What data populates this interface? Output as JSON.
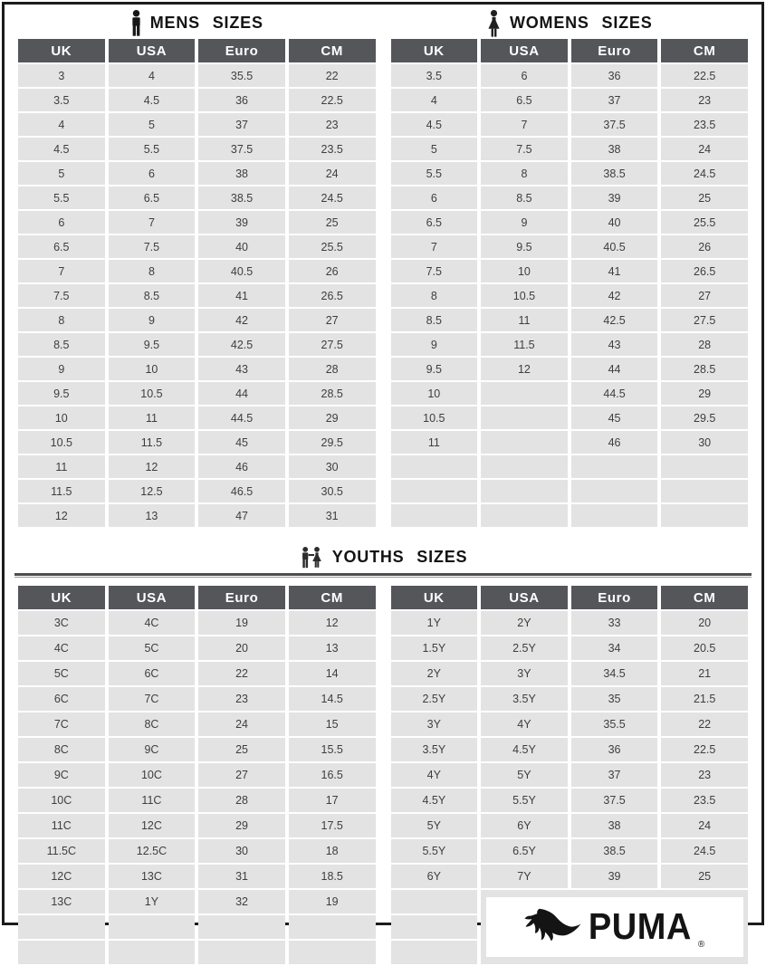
{
  "sections": {
    "mens": {
      "title": "MENS SIZES"
    },
    "womens": {
      "title": "WOMENS SIZES"
    },
    "youths": {
      "title": "YOUTHS SIZES"
    }
  },
  "tables": {
    "mens": {
      "headers": [
        "UK",
        "USA",
        "Euro",
        "CM"
      ],
      "rows": [
        [
          "3",
          "4",
          "35.5",
          "22"
        ],
        [
          "3.5",
          "4.5",
          "36",
          "22.5"
        ],
        [
          "4",
          "5",
          "37",
          "23"
        ],
        [
          "4.5",
          "5.5",
          "37.5",
          "23.5"
        ],
        [
          "5",
          "6",
          "38",
          "24"
        ],
        [
          "5.5",
          "6.5",
          "38.5",
          "24.5"
        ],
        [
          "6",
          "7",
          "39",
          "25"
        ],
        [
          "6.5",
          "7.5",
          "40",
          "25.5"
        ],
        [
          "7",
          "8",
          "40.5",
          "26"
        ],
        [
          "7.5",
          "8.5",
          "41",
          "26.5"
        ],
        [
          "8",
          "9",
          "42",
          "27"
        ],
        [
          "8.5",
          "9.5",
          "42.5",
          "27.5"
        ],
        [
          "9",
          "10",
          "43",
          "28"
        ],
        [
          "9.5",
          "10.5",
          "44",
          "28.5"
        ],
        [
          "10",
          "11",
          "44.5",
          "29"
        ],
        [
          "10.5",
          "11.5",
          "45",
          "29.5"
        ],
        [
          "11",
          "12",
          "46",
          "30"
        ],
        [
          "11.5",
          "12.5",
          "46.5",
          "30.5"
        ],
        [
          "12",
          "13",
          "47",
          "31"
        ]
      ]
    },
    "womens": {
      "headers": [
        "UK",
        "USA",
        "Euro",
        "CM"
      ],
      "rows": [
        [
          "3.5",
          "6",
          "36",
          "22.5"
        ],
        [
          "4",
          "6.5",
          "37",
          "23"
        ],
        [
          "4.5",
          "7",
          "37.5",
          "23.5"
        ],
        [
          "5",
          "7.5",
          "38",
          "24"
        ],
        [
          "5.5",
          "8",
          "38.5",
          "24.5"
        ],
        [
          "6",
          "8.5",
          "39",
          "25"
        ],
        [
          "6.5",
          "9",
          "40",
          "25.5"
        ],
        [
          "7",
          "9.5",
          "40.5",
          "26"
        ],
        [
          "7.5",
          "10",
          "41",
          "26.5"
        ],
        [
          "8",
          "10.5",
          "42",
          "27"
        ],
        [
          "8.5",
          "11",
          "42.5",
          "27.5"
        ],
        [
          "9",
          "11.5",
          "43",
          "28"
        ],
        [
          "9.5",
          "12",
          "44",
          "28.5"
        ],
        [
          "10",
          "",
          "44.5",
          "29"
        ],
        [
          "10.5",
          "",
          "45",
          "29.5"
        ],
        [
          "11",
          "",
          "46",
          "30"
        ],
        [
          "",
          "",
          "",
          ""
        ],
        [
          "",
          "",
          "",
          ""
        ],
        [
          "",
          "",
          "",
          ""
        ]
      ]
    },
    "youths_left": {
      "headers": [
        "UK",
        "USA",
        "Euro",
        "CM"
      ],
      "rows": [
        [
          "3C",
          "4C",
          "19",
          "12"
        ],
        [
          "4C",
          "5C",
          "20",
          "13"
        ],
        [
          "5C",
          "6C",
          "22",
          "14"
        ],
        [
          "6C",
          "7C",
          "23",
          "14.5"
        ],
        [
          "7C",
          "8C",
          "24",
          "15"
        ],
        [
          "8C",
          "9C",
          "25",
          "15.5"
        ],
        [
          "9C",
          "10C",
          "27",
          "16.5"
        ],
        [
          "10C",
          "11C",
          "28",
          "17"
        ],
        [
          "11C",
          "12C",
          "29",
          "17.5"
        ],
        [
          "11.5C",
          "12.5C",
          "30",
          "18"
        ],
        [
          "12C",
          "13C",
          "31",
          "18.5"
        ],
        [
          "13C",
          "1Y",
          "32",
          "19"
        ],
        [
          "",
          "",
          "",
          ""
        ],
        [
          "",
          "",
          "",
          ""
        ]
      ]
    },
    "youths_right": {
      "headers": [
        "UK",
        "USA",
        "Euro",
        "CM"
      ],
      "rows": [
        [
          "1Y",
          "2Y",
          "33",
          "20"
        ],
        [
          "1.5Y",
          "2.5Y",
          "34",
          "20.5"
        ],
        [
          "2Y",
          "3Y",
          "34.5",
          "21"
        ],
        [
          "2.5Y",
          "3.5Y",
          "35",
          "21.5"
        ],
        [
          "3Y",
          "4Y",
          "35.5",
          "22"
        ],
        [
          "3.5Y",
          "4.5Y",
          "36",
          "22.5"
        ],
        [
          "4Y",
          "5Y",
          "37",
          "23"
        ],
        [
          "4.5Y",
          "5.5Y",
          "37.5",
          "23.5"
        ],
        [
          "5Y",
          "6Y",
          "38",
          "24"
        ],
        [
          "5.5Y",
          "6.5Y",
          "38.5",
          "24.5"
        ],
        [
          "6Y",
          "7Y",
          "39",
          "25"
        ]
      ]
    }
  },
  "logo": {
    "brand": "PUMA",
    "registered": "®"
  },
  "colors": {
    "header_bg": "#54565a",
    "header_text": "#ffffff",
    "cell_bg": "#e3e3e4",
    "cell_text": "#3e3e3e",
    "frame_border": "#1c1c1c"
  }
}
